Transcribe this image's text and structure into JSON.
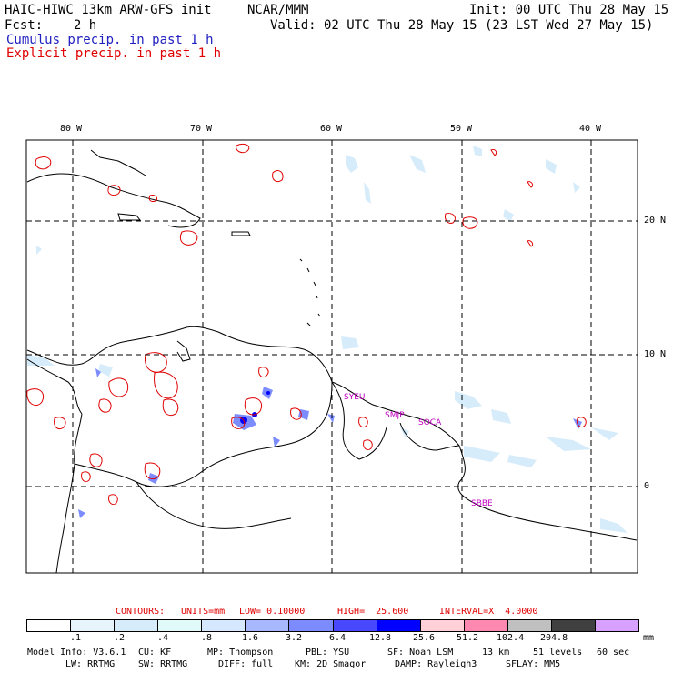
{
  "header": {
    "model_title": "HAIC-HIWC 13km ARW-GFS init",
    "center": "NCAR/MMM",
    "init": "Init: 00 UTC Thu 28 May 15",
    "fcst": "Fcst:    2 h",
    "valid": "Valid: 02 UTC Thu 28 May 15 (23 LST Wed 27 May 15)",
    "cumulus_label": "Cumulus precip. in past 1 h",
    "explicit_label": "Explicit precip. in past 1 h"
  },
  "map": {
    "lon_labels": [
      "80 W",
      "70 W",
      "60 W",
      "50 W",
      "40 W"
    ],
    "lat_labels": [
      "20 N",
      "10 N",
      "0"
    ],
    "stations": [
      "SYEU",
      "SMJP",
      "SOCA",
      "SBBE"
    ],
    "colors": {
      "coast": "#000000",
      "explicit_contour": "#e00000",
      "grid": "#000000"
    }
  },
  "contours": {
    "label": "CONTOURS:",
    "units": "UNITS=mm",
    "low": "LOW= 0.10000",
    "high": "HIGH=  25.600",
    "interval": "INTERVAL=X  4.0000"
  },
  "colorbar": {
    "colors": [
      "#ffffff",
      "#e8f4fc",
      "#d6ecfa",
      "#e0fafa",
      "#d6e8ff",
      "#a8b8ff",
      "#7c8cff",
      "#4848ff",
      "#0000ff",
      "#ffd0d8",
      "#ff88b0",
      "#c0c0c0",
      "#404040",
      "#d8a0ff"
    ],
    "ticks": [
      ".1",
      ".2",
      ".4",
      ".8",
      "1.6",
      "3.2",
      "6.4",
      "12.8",
      "25.6",
      "51.2",
      "102.4",
      "204.8"
    ],
    "units": "mm"
  },
  "model_info": {
    "line1": [
      "Model Info: V3.6.1",
      "CU: KF",
      "MP: Thompson",
      "PBL: YSU",
      "SF: Noah LSM",
      "13 km",
      "51 levels",
      "60 sec"
    ],
    "line2": [
      "LW: RRTMG",
      "SW: RRTMG",
      "DIFF: full",
      "KM: 2D Smagor",
      "DAMP: Rayleigh3",
      "SFLAY: MM5"
    ]
  }
}
